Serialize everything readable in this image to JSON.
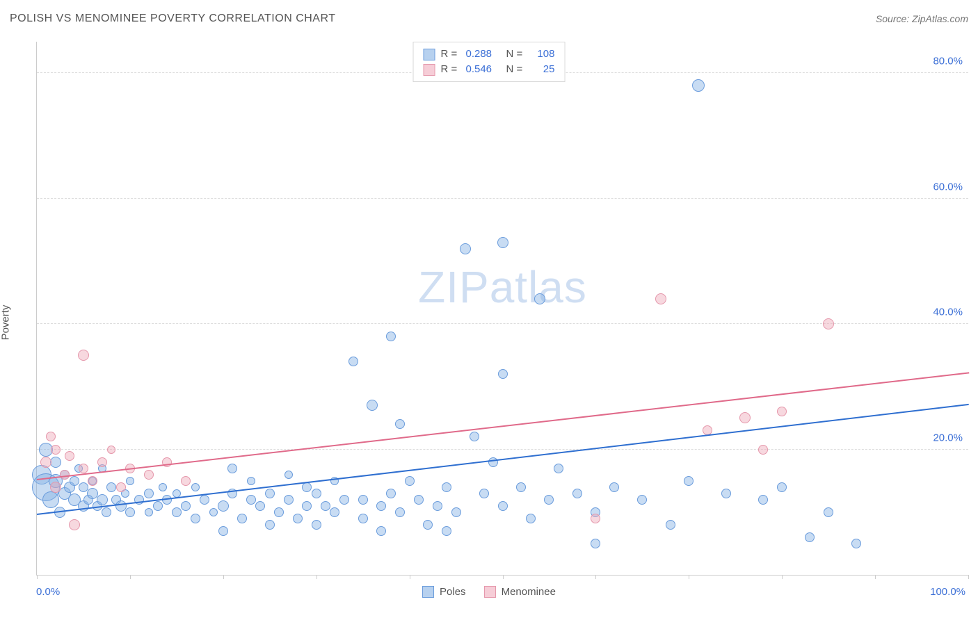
{
  "title": "POLISH VS MENOMINEE POVERTY CORRELATION CHART",
  "source": "Source: ZipAtlas.com",
  "watermark_zip": "ZIP",
  "watermark_atlas": "atlas",
  "ylabel": "Poverty",
  "xmin_label": "0.0%",
  "xmax_label": "100.0%",
  "chart": {
    "type": "scatter",
    "xlim": [
      0,
      100
    ],
    "ylim": [
      0,
      85
    ],
    "ytick_values": [
      20,
      40,
      60,
      80
    ],
    "ytick_labels": [
      "20.0%",
      "40.0%",
      "60.0%",
      "80.0%"
    ],
    "xtick_values": [
      0,
      10,
      20,
      30,
      40,
      50,
      60,
      70,
      80,
      90,
      100
    ],
    "background_color": "#ffffff",
    "grid_color": "#dddddd",
    "axis_color": "#cccccc",
    "label_color": "#3b6fd6",
    "series": [
      {
        "name": "Poles",
        "swatch_fill": "#b7d1ef",
        "swatch_border": "#6a9cdc",
        "point_fill": "rgba(133,177,229,0.45)",
        "point_border": "#6a9cdc",
        "trend_color": "#2f6fd0",
        "R": "0.288",
        "N": "108",
        "trend": {
          "x1": 0,
          "y1": 9.5,
          "x2": 100,
          "y2": 27
        },
        "points": [
          {
            "x": 0.5,
            "y": 16,
            "r": 14
          },
          {
            "x": 1,
            "y": 20,
            "r": 10
          },
          {
            "x": 1,
            "y": 14,
            "r": 20
          },
          {
            "x": 1.5,
            "y": 12,
            "r": 12
          },
          {
            "x": 2,
            "y": 15,
            "r": 10
          },
          {
            "x": 2,
            "y": 18,
            "r": 8
          },
          {
            "x": 2.5,
            "y": 10,
            "r": 8
          },
          {
            "x": 3,
            "y": 13,
            "r": 9
          },
          {
            "x": 3,
            "y": 16,
            "r": 7
          },
          {
            "x": 3.5,
            "y": 14,
            "r": 8
          },
          {
            "x": 4,
            "y": 12,
            "r": 9
          },
          {
            "x": 4,
            "y": 15,
            "r": 7
          },
          {
            "x": 4.5,
            "y": 17,
            "r": 6
          },
          {
            "x": 5,
            "y": 11,
            "r": 8
          },
          {
            "x": 5,
            "y": 14,
            "r": 7
          },
          {
            "x": 5.5,
            "y": 12,
            "r": 7
          },
          {
            "x": 6,
            "y": 13,
            "r": 8
          },
          {
            "x": 6,
            "y": 15,
            "r": 6
          },
          {
            "x": 6.5,
            "y": 11,
            "r": 7
          },
          {
            "x": 7,
            "y": 12,
            "r": 8
          },
          {
            "x": 7,
            "y": 17,
            "r": 6
          },
          {
            "x": 7.5,
            "y": 10,
            "r": 7
          },
          {
            "x": 8,
            "y": 14,
            "r": 7
          },
          {
            "x": 8.5,
            "y": 12,
            "r": 7
          },
          {
            "x": 9,
            "y": 11,
            "r": 8
          },
          {
            "x": 9.5,
            "y": 13,
            "r": 6
          },
          {
            "x": 10,
            "y": 10,
            "r": 7
          },
          {
            "x": 10,
            "y": 15,
            "r": 6
          },
          {
            "x": 11,
            "y": 12,
            "r": 7
          },
          {
            "x": 12,
            "y": 13,
            "r": 7
          },
          {
            "x": 12,
            "y": 10,
            "r": 6
          },
          {
            "x": 13,
            "y": 11,
            "r": 7
          },
          {
            "x": 13.5,
            "y": 14,
            "r": 6
          },
          {
            "x": 14,
            "y": 12,
            "r": 7
          },
          {
            "x": 15,
            "y": 10,
            "r": 7
          },
          {
            "x": 15,
            "y": 13,
            "r": 6
          },
          {
            "x": 16,
            "y": 11,
            "r": 7
          },
          {
            "x": 17,
            "y": 9,
            "r": 7
          },
          {
            "x": 17,
            "y": 14,
            "r": 6
          },
          {
            "x": 18,
            "y": 12,
            "r": 7
          },
          {
            "x": 19,
            "y": 10,
            "r": 6
          },
          {
            "x": 20,
            "y": 11,
            "r": 8
          },
          {
            "x": 20,
            "y": 7,
            "r": 7
          },
          {
            "x": 21,
            "y": 13,
            "r": 7
          },
          {
            "x": 21,
            "y": 17,
            "r": 7
          },
          {
            "x": 22,
            "y": 9,
            "r": 7
          },
          {
            "x": 23,
            "y": 12,
            "r": 7
          },
          {
            "x": 23,
            "y": 15,
            "r": 6
          },
          {
            "x": 24,
            "y": 11,
            "r": 7
          },
          {
            "x": 25,
            "y": 8,
            "r": 7
          },
          {
            "x": 25,
            "y": 13,
            "r": 7
          },
          {
            "x": 26,
            "y": 10,
            "r": 7
          },
          {
            "x": 27,
            "y": 12,
            "r": 7
          },
          {
            "x": 27,
            "y": 16,
            "r": 6
          },
          {
            "x": 28,
            "y": 9,
            "r": 7
          },
          {
            "x": 29,
            "y": 11,
            "r": 7
          },
          {
            "x": 29,
            "y": 14,
            "r": 7
          },
          {
            "x": 30,
            "y": 8,
            "r": 7
          },
          {
            "x": 30,
            "y": 13,
            "r": 7
          },
          {
            "x": 31,
            "y": 11,
            "r": 7
          },
          {
            "x": 32,
            "y": 10,
            "r": 7
          },
          {
            "x": 32,
            "y": 15,
            "r": 6
          },
          {
            "x": 33,
            "y": 12,
            "r": 7
          },
          {
            "x": 34,
            "y": 34,
            "r": 7
          },
          {
            "x": 35,
            "y": 9,
            "r": 7
          },
          {
            "x": 35,
            "y": 12,
            "r": 7
          },
          {
            "x": 36,
            "y": 27,
            "r": 8
          },
          {
            "x": 37,
            "y": 11,
            "r": 7
          },
          {
            "x": 37,
            "y": 7,
            "r": 7
          },
          {
            "x": 38,
            "y": 13,
            "r": 7
          },
          {
            "x": 38,
            "y": 38,
            "r": 7
          },
          {
            "x": 39,
            "y": 10,
            "r": 7
          },
          {
            "x": 39,
            "y": 24,
            "r": 7
          },
          {
            "x": 40,
            "y": 15,
            "r": 7
          },
          {
            "x": 41,
            "y": 12,
            "r": 7
          },
          {
            "x": 42,
            "y": 8,
            "r": 7
          },
          {
            "x": 43,
            "y": 11,
            "r": 7
          },
          {
            "x": 44,
            "y": 7,
            "r": 7
          },
          {
            "x": 44,
            "y": 14,
            "r": 7
          },
          {
            "x": 45,
            "y": 10,
            "r": 7
          },
          {
            "x": 46,
            "y": 52,
            "r": 8
          },
          {
            "x": 47,
            "y": 22,
            "r": 7
          },
          {
            "x": 48,
            "y": 13,
            "r": 7
          },
          {
            "x": 49,
            "y": 18,
            "r": 7
          },
          {
            "x": 50,
            "y": 53,
            "r": 8
          },
          {
            "x": 50,
            "y": 11,
            "r": 7
          },
          {
            "x": 50,
            "y": 32,
            "r": 7
          },
          {
            "x": 52,
            "y": 14,
            "r": 7
          },
          {
            "x": 53,
            "y": 9,
            "r": 7
          },
          {
            "x": 54,
            "y": 44,
            "r": 8
          },
          {
            "x": 55,
            "y": 12,
            "r": 7
          },
          {
            "x": 56,
            "y": 17,
            "r": 7
          },
          {
            "x": 58,
            "y": 13,
            "r": 7
          },
          {
            "x": 60,
            "y": 10,
            "r": 7
          },
          {
            "x": 60,
            "y": 5,
            "r": 7
          },
          {
            "x": 62,
            "y": 14,
            "r": 7
          },
          {
            "x": 65,
            "y": 12,
            "r": 7
          },
          {
            "x": 68,
            "y": 8,
            "r": 7
          },
          {
            "x": 70,
            "y": 15,
            "r": 7
          },
          {
            "x": 71,
            "y": 78,
            "r": 9
          },
          {
            "x": 74,
            "y": 13,
            "r": 7
          },
          {
            "x": 78,
            "y": 12,
            "r": 7
          },
          {
            "x": 80,
            "y": 14,
            "r": 7
          },
          {
            "x": 83,
            "y": 6,
            "r": 7
          },
          {
            "x": 85,
            "y": 10,
            "r": 7
          },
          {
            "x": 88,
            "y": 5,
            "r": 7
          }
        ]
      },
      {
        "name": "Menominee",
        "swatch_fill": "#f6cdd7",
        "swatch_border": "#e597ab",
        "point_fill": "rgba(238,168,185,0.45)",
        "point_border": "#e597ab",
        "trend_color": "#e06a8a",
        "R": "0.546",
        "N": "25",
        "trend": {
          "x1": 0,
          "y1": 15,
          "x2": 100,
          "y2": 32
        },
        "points": [
          {
            "x": 1,
            "y": 18,
            "r": 8
          },
          {
            "x": 1.5,
            "y": 22,
            "r": 7
          },
          {
            "x": 2,
            "y": 14,
            "r": 8
          },
          {
            "x": 2,
            "y": 20,
            "r": 7
          },
          {
            "x": 3,
            "y": 16,
            "r": 7
          },
          {
            "x": 3.5,
            "y": 19,
            "r": 7
          },
          {
            "x": 4,
            "y": 8,
            "r": 8
          },
          {
            "x": 5,
            "y": 17,
            "r": 7
          },
          {
            "x": 5,
            "y": 35,
            "r": 8
          },
          {
            "x": 6,
            "y": 15,
            "r": 7
          },
          {
            "x": 7,
            "y": 18,
            "r": 7
          },
          {
            "x": 8,
            "y": 20,
            "r": 6
          },
          {
            "x": 9,
            "y": 14,
            "r": 7
          },
          {
            "x": 10,
            "y": 17,
            "r": 7
          },
          {
            "x": 12,
            "y": 16,
            "r": 7
          },
          {
            "x": 14,
            "y": 18,
            "r": 7
          },
          {
            "x": 16,
            "y": 15,
            "r": 7
          },
          {
            "x": 60,
            "y": 9,
            "r": 7
          },
          {
            "x": 67,
            "y": 44,
            "r": 8
          },
          {
            "x": 72,
            "y": 23,
            "r": 7
          },
          {
            "x": 76,
            "y": 25,
            "r": 8
          },
          {
            "x": 78,
            "y": 20,
            "r": 7
          },
          {
            "x": 80,
            "y": 26,
            "r": 7
          },
          {
            "x": 85,
            "y": 40,
            "r": 8
          }
        ]
      }
    ]
  }
}
